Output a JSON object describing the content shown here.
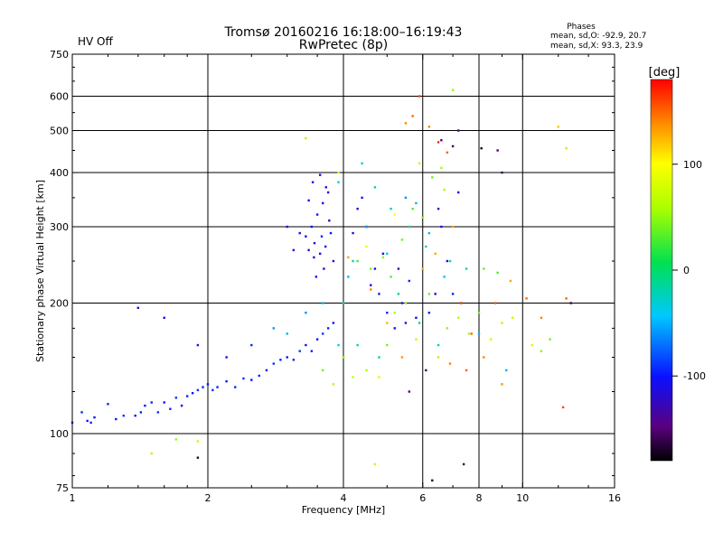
{
  "header": {
    "title_line1": "Tromsø 20160216 16:18:00–16:19:43",
    "title_line2": "RwPretec (8p)",
    "status": "HV Off",
    "status_color": "#d40000"
  },
  "stats": {
    "heading": "Phases",
    "line_o": "mean, sd,O: -92.9, 20.7",
    "line_x": "mean, sd,X:  93.3, 23.9"
  },
  "colorbar": {
    "label": "[deg]",
    "ticks": [
      "100",
      "0",
      "-100"
    ]
  },
  "chart_data": {
    "type": "scatter",
    "title": "Tromsø 20160216 16:18:00–16:19:43",
    "subtitle": "RwPretec (8p)",
    "xlabel": "Frequency [MHz]",
    "ylabel": "Stationary phase Virtual Height [km]",
    "xscale": "log",
    "yscale": "log",
    "xlim": [
      1,
      16
    ],
    "ylim": [
      75,
      750
    ],
    "x_ticks": [
      "1",
      "2",
      "4",
      "6",
      "8",
      "10",
      "16"
    ],
    "y_ticks": [
      "75",
      "100",
      "200",
      "300",
      "400",
      "500",
      "600",
      "750"
    ],
    "x_grid": [
      2,
      4,
      6,
      8,
      10
    ],
    "y_grid": [
      100,
      200,
      300,
      400,
      500,
      600
    ],
    "color_scale": {
      "label": "[deg]",
      "min": -180,
      "max": 180,
      "ticks": [
        100,
        0,
        -100
      ]
    },
    "series": [
      {
        "points": [
          [
            1.0,
            106,
            -95
          ],
          [
            1.05,
            112,
            -95
          ],
          [
            1.08,
            107,
            -100
          ],
          [
            1.1,
            106,
            -95
          ],
          [
            1.12,
            109,
            -100
          ],
          [
            1.2,
            117,
            -95
          ],
          [
            1.25,
            108,
            -100
          ],
          [
            1.3,
            110,
            -90
          ],
          [
            1.38,
            110,
            -100
          ],
          [
            1.42,
            112,
            -95
          ],
          [
            1.45,
            116,
            -100
          ],
          [
            1.5,
            118,
            -95
          ],
          [
            1.55,
            112,
            -90
          ],
          [
            1.6,
            118,
            -100
          ],
          [
            1.65,
            114,
            -95
          ],
          [
            1.7,
            121,
            -90
          ],
          [
            1.75,
            116,
            -100
          ],
          [
            1.8,
            122,
            -95
          ],
          [
            1.85,
            124,
            -100
          ],
          [
            1.9,
            126,
            -90
          ],
          [
            1.95,
            128,
            -95
          ],
          [
            2.0,
            130,
            -100
          ],
          [
            2.05,
            126,
            -90
          ],
          [
            2.1,
            128,
            -95
          ],
          [
            2.2,
            132,
            -100
          ],
          [
            2.3,
            128,
            -95
          ],
          [
            2.4,
            134,
            -90
          ],
          [
            2.5,
            133,
            -100
          ],
          [
            2.6,
            136,
            -95
          ],
          [
            2.7,
            140,
            -100
          ],
          [
            2.8,
            145,
            -90
          ],
          [
            2.9,
            148,
            -95
          ],
          [
            3.0,
            150,
            -100
          ],
          [
            3.1,
            148,
            -95
          ],
          [
            3.2,
            155,
            -90
          ],
          [
            3.3,
            160,
            -100
          ],
          [
            3.4,
            155,
            -95
          ],
          [
            3.5,
            165,
            -100
          ],
          [
            3.6,
            170,
            -90
          ],
          [
            3.7,
            175,
            -95
          ],
          [
            3.8,
            180,
            -100
          ],
          [
            1.4,
            195,
            -120
          ],
          [
            1.6,
            185,
            -110
          ],
          [
            1.9,
            160,
            -100
          ],
          [
            2.2,
            150,
            -105
          ],
          [
            2.5,
            160,
            -95
          ],
          [
            3.3,
            285,
            -110
          ],
          [
            3.35,
            265,
            -120
          ],
          [
            3.4,
            300,
            -105
          ],
          [
            3.45,
            275,
            -115
          ],
          [
            3.5,
            320,
            -100
          ],
          [
            3.55,
            260,
            -110
          ],
          [
            3.6,
            340,
            -120
          ],
          [
            3.65,
            270,
            -105
          ],
          [
            3.7,
            360,
            -110
          ],
          [
            3.75,
            290,
            -100
          ],
          [
            3.8,
            250,
            -115
          ],
          [
            3.42,
            380,
            -105
          ],
          [
            3.55,
            395,
            -110
          ],
          [
            3.48,
            230,
            -100
          ],
          [
            3.62,
            240,
            -115
          ],
          [
            3.35,
            345,
            -105
          ],
          [
            3.72,
            310,
            -120
          ],
          [
            3.58,
            285,
            -95
          ],
          [
            3.44,
            255,
            -110
          ],
          [
            3.66,
            370,
            -105
          ],
          [
            4.3,
            330,
            -110
          ],
          [
            4.4,
            350,
            -100
          ],
          [
            4.5,
            300,
            -95
          ],
          [
            4.6,
            220,
            -105
          ],
          [
            4.7,
            240,
            -110
          ],
          [
            4.8,
            210,
            -100
          ],
          [
            5.0,
            190,
            -95
          ],
          [
            5.2,
            175,
            -100
          ],
          [
            5.4,
            200,
            -110
          ],
          [
            5.6,
            225,
            -95
          ],
          [
            5.8,
            185,
            -105
          ],
          [
            6.2,
            190,
            -100
          ],
          [
            6.4,
            210,
            -110
          ],
          [
            6.6,
            300,
            -105
          ],
          [
            6.8,
            250,
            -100
          ],
          [
            7.0,
            210,
            -95
          ],
          [
            4.2,
            290,
            -120
          ],
          [
            4.9,
            260,
            -115
          ],
          [
            5.3,
            240,
            -120
          ],
          [
            6.5,
            330,
            -120
          ],
          [
            7.2,
            360,
            -110
          ],
          [
            3.0,
            300,
            -100
          ],
          [
            3.1,
            265,
            -110
          ],
          [
            3.2,
            290,
            -105
          ],
          [
            5.5,
            180,
            -115
          ]
        ]
      },
      {
        "points": [
          [
            2.8,
            175,
            -60
          ],
          [
            3.0,
            170,
            -50
          ],
          [
            3.3,
            190,
            -60
          ],
          [
            3.6,
            200,
            -50
          ],
          [
            3.9,
            160,
            -40
          ],
          [
            4.1,
            230,
            -50
          ],
          [
            4.5,
            300,
            -55
          ],
          [
            5.0,
            260,
            -45
          ],
          [
            5.5,
            350,
            -60
          ],
          [
            5.8,
            340,
            -50
          ],
          [
            6.2,
            290,
            -50
          ],
          [
            6.7,
            230,
            -45
          ],
          [
            7.3,
            200,
            -55
          ],
          [
            8.0,
            170,
            -50
          ],
          [
            9.2,
            140,
            -50
          ],
          [
            3.9,
            380,
            -30
          ],
          [
            4.4,
            420,
            -25
          ],
          [
            4.7,
            370,
            -15
          ],
          [
            5.1,
            330,
            -20
          ],
          [
            5.6,
            300,
            -10
          ],
          [
            6.1,
            270,
            -20
          ],
          [
            6.9,
            250,
            -15
          ],
          [
            4.0,
            200,
            -25
          ],
          [
            4.3,
            160,
            -15
          ],
          [
            4.8,
            150,
            -20
          ],
          [
            5.3,
            210,
            -10
          ],
          [
            5.9,
            180,
            -20
          ],
          [
            6.5,
            160,
            -25
          ],
          [
            7.5,
            240,
            -10
          ],
          [
            4.2,
            250,
            -30
          ]
        ]
      },
      {
        "points": [
          [
            3.6,
            140,
            40
          ],
          [
            3.8,
            130,
            60
          ],
          [
            4.0,
            150,
            50
          ],
          [
            4.2,
            135,
            70
          ],
          [
            4.5,
            140,
            60
          ],
          [
            4.8,
            135,
            80
          ],
          [
            5.0,
            160,
            40
          ],
          [
            5.2,
            190,
            60
          ],
          [
            5.5,
            200,
            50
          ],
          [
            5.8,
            165,
            70
          ],
          [
            6.2,
            210,
            40
          ],
          [
            6.5,
            150,
            60
          ],
          [
            6.8,
            175,
            50
          ],
          [
            7.2,
            185,
            70
          ],
          [
            7.6,
            170,
            60
          ],
          [
            8.0,
            190,
            40
          ],
          [
            8.5,
            165,
            70
          ],
          [
            9.0,
            180,
            60
          ],
          [
            11.0,
            155,
            50
          ],
          [
            11.5,
            165,
            40
          ],
          [
            12.5,
            455,
            60
          ],
          [
            4.3,
            250,
            30
          ],
          [
            4.6,
            240,
            40
          ],
          [
            4.9,
            255,
            50
          ],
          [
            5.1,
            230,
            30
          ],
          [
            5.4,
            280,
            40
          ],
          [
            5.7,
            330,
            30
          ],
          [
            6.0,
            315,
            45
          ],
          [
            6.3,
            390,
            40
          ],
          [
            6.6,
            410,
            55
          ],
          [
            7.0,
            620,
            50
          ],
          [
            3.9,
            400,
            80
          ],
          [
            4.5,
            270,
            90
          ],
          [
            5.2,
            320,
            100
          ],
          [
            5.9,
            420,
            70
          ],
          [
            6.7,
            365,
            60
          ],
          [
            9.5,
            185,
            70
          ],
          [
            10.5,
            160,
            80
          ],
          [
            1.5,
            90,
            60
          ],
          [
            1.7,
            97,
            50
          ],
          [
            4.7,
            85,
            70
          ],
          [
            1.9,
            96,
            70
          ],
          [
            8.2,
            240,
            40
          ],
          [
            8.8,
            235,
            30
          ],
          [
            3.3,
            480,
            60
          ]
        ]
      },
      {
        "points": [
          [
            5.5,
            520,
            140
          ],
          [
            5.7,
            540,
            150
          ],
          [
            5.9,
            600,
            160
          ],
          [
            6.2,
            510,
            140
          ],
          [
            6.5,
            470,
            170
          ],
          [
            6.8,
            445,
            150
          ],
          [
            7.0,
            300,
            130
          ],
          [
            7.3,
            200,
            160
          ],
          [
            7.7,
            170,
            150
          ],
          [
            8.2,
            150,
            140
          ],
          [
            8.7,
            200,
            155
          ],
          [
            9.0,
            130,
            135
          ],
          [
            10.2,
            205,
            150
          ],
          [
            11.0,
            185,
            140
          ],
          [
            12.5,
            205,
            150
          ],
          [
            12.3,
            115,
            160
          ],
          [
            4.1,
            255,
            130
          ],
          [
            4.6,
            215,
            140
          ],
          [
            5.0,
            180,
            125
          ],
          [
            5.4,
            150,
            135
          ],
          [
            6.0,
            240,
            125
          ],
          [
            6.4,
            260,
            130
          ],
          [
            6.9,
            145,
            140
          ],
          [
            7.5,
            140,
            150
          ],
          [
            12.0,
            510,
            120
          ],
          [
            9.4,
            225,
            130
          ]
        ]
      },
      {
        "points": [
          [
            6.6,
            475,
            -150
          ],
          [
            7.0,
            460,
            -160
          ],
          [
            7.2,
            500,
            -150
          ],
          [
            7.4,
            85,
            -160
          ],
          [
            8.1,
            455,
            -170
          ],
          [
            8.8,
            450,
            -150
          ],
          [
            9.0,
            400,
            -160
          ],
          [
            6.3,
            78,
            -165
          ],
          [
            1.9,
            88,
            -170
          ],
          [
            12.8,
            200,
            -160
          ],
          [
            5.6,
            125,
            -150
          ],
          [
            6.1,
            140,
            -155
          ]
        ]
      }
    ]
  }
}
